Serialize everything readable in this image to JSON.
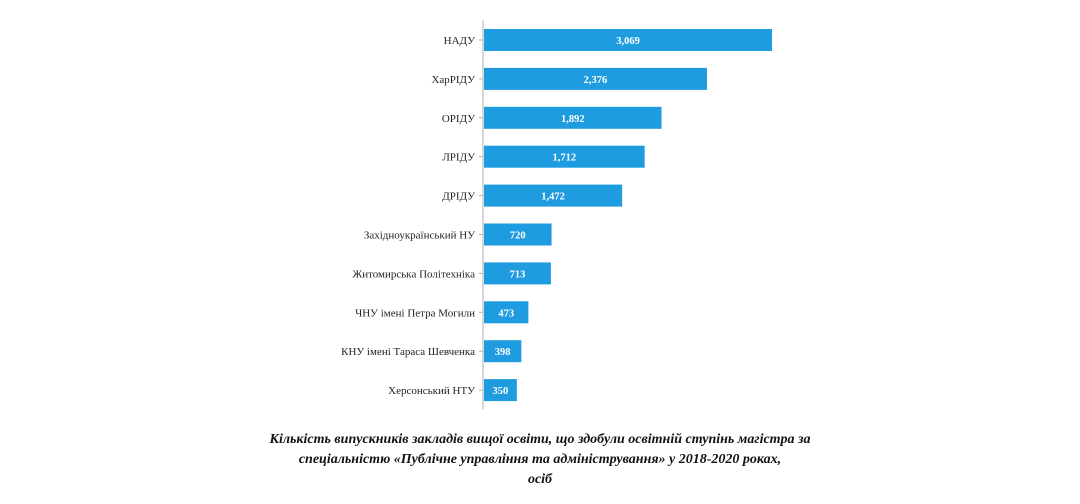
{
  "chart_data": {
    "type": "bar",
    "orientation": "horizontal",
    "categories": [
      "НАДУ",
      "ХарРІДУ",
      "ОРІДУ",
      "ЛРІДУ",
      "ДРІДУ",
      "Західноукраїнський НУ",
      "Житомирська Політехніка",
      "ЧНУ імені Петра Могили",
      "КНУ імені Тараса Шевченка",
      "Херсонський НТУ"
    ],
    "values": [
      3069,
      2376,
      1892,
      1712,
      1472,
      720,
      713,
      473,
      398,
      350
    ],
    "value_labels": [
      "3,069",
      "2,376",
      "1,892",
      "1,712",
      "1,472",
      "720",
      "713",
      "473",
      "398",
      "350"
    ],
    "bar_color": "#1f9ce0",
    "axis_line_color": "#b0b0b0",
    "grid": false,
    "xlim": [
      0,
      3069
    ]
  },
  "caption": {
    "line1": "Кількість випускників закладів вищої освіти, що здобули освітній ступінь магістра за",
    "line2": "спеціальністю «Публічне управління та адміністрування» у 2018-2020 роках,",
    "line3": "осіб"
  }
}
